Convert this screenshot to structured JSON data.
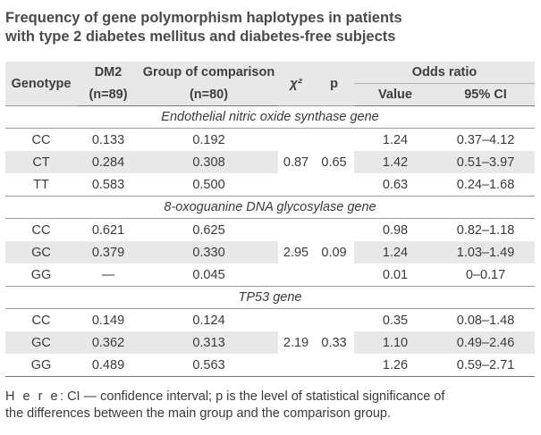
{
  "title": {
    "line1": "Frequency of gene polymorphism haplotypes in patients",
    "line2": "with type 2 diabetes mellitus and diabetes-free subjects"
  },
  "table": {
    "headers": {
      "genotype": "Genotype",
      "dm2": "DM2",
      "dm2_n": "(n=89)",
      "comparison": "Group of comparison",
      "comparison_n": "(n=80)",
      "chi2": "χ²",
      "p": "p",
      "odds_ratio": "Odds ratio",
      "value": "Value",
      "ci": "95% CI"
    },
    "sections": [
      {
        "name": "Endothelial nitric oxide synthase gene",
        "chi2": "0.87",
        "p": "0.65",
        "rows": [
          {
            "genotype": "CC",
            "dm2": "0.133",
            "comparison": "0.192",
            "value": "1.24",
            "ci": "0.37–4.12"
          },
          {
            "genotype": "CT",
            "dm2": "0.284",
            "comparison": "0.308",
            "value": "1.42",
            "ci": "0.51–3.97"
          },
          {
            "genotype": "TT",
            "dm2": "0.583",
            "comparison": "0.500",
            "value": "0.63",
            "ci": "0.24–1.68"
          }
        ]
      },
      {
        "name": "8-oxoguanine DNA glycosylase gene",
        "chi2": "2.95",
        "p": "0.09",
        "rows": [
          {
            "genotype": "CC",
            "dm2": "0.621",
            "comparison": "0.625",
            "value": "0.98",
            "ci": "0.82–1.18"
          },
          {
            "genotype": "GC",
            "dm2": "0.379",
            "comparison": "0.330",
            "value": "1.24",
            "ci": "1.03–1.49"
          },
          {
            "genotype": "GG",
            "dm2": "—",
            "comparison": "0.045",
            "value": "0.01",
            "ci": "0–0.17"
          }
        ]
      },
      {
        "name": "TP53 gene",
        "chi2": "2.19",
        "p": "0.33",
        "rows": [
          {
            "genotype": "CC",
            "dm2": "0.149",
            "comparison": "0.124",
            "value": "0.35",
            "ci": "0.08–1.48"
          },
          {
            "genotype": "GC",
            "dm2": "0.362",
            "comparison": "0.313",
            "value": "1.10",
            "ci": "0.49–2.46"
          },
          {
            "genotype": "GG",
            "dm2": "0.489",
            "comparison": "0.563",
            "value": "1.26",
            "ci": "0.59–2.71"
          }
        ]
      }
    ]
  },
  "footnote": {
    "here": "H e r e",
    "line1_rest": ": CI — confidence interval; p is the level of statistical significance of",
    "line2": "the differences between the main group and the comparison group."
  }
}
